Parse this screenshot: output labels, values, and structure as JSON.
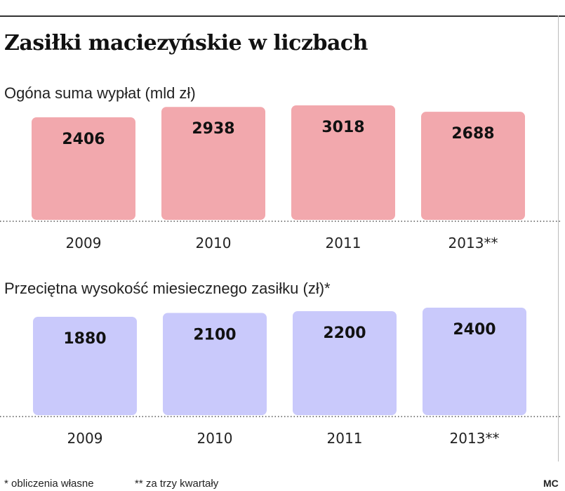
{
  "title": "Zasiłki maciezyńskie w liczbach",
  "charts": [
    {
      "subtitle": "Ogóna suma wypłat (mld zł)"
    },
    {
      "subtitle": "Przeciętna wysokość miesiecznego zasiłku (zł)*"
    }
  ],
  "chart_data": [
    {
      "type": "bar",
      "title": "Ogóna suma wypłat (mld zł)",
      "categories": [
        "2009",
        "2010",
        "2011",
        "2013**"
      ],
      "values": [
        2406,
        2938,
        3018,
        2688
      ],
      "data_labels": [
        "2406",
        "2938",
        "3018",
        "2688"
      ],
      "bar_color": "#f2a8ad",
      "grid": false,
      "legend": "none"
    },
    {
      "type": "bar",
      "title": "Przeciętna wysokość miesiecznego zasiłku (zł)*",
      "categories": [
        "2009",
        "2010",
        "2011",
        "2013**"
      ],
      "values": [
        1880,
        2100,
        2200,
        2400
      ],
      "data_labels": [
        "1880",
        "2100",
        "2200",
        "2400"
      ],
      "bar_color": "#c9c9fb",
      "grid": false,
      "legend": "none"
    }
  ],
  "footer": {
    "note_1": "* obliczenia własne",
    "note_2": "** za trzy kwartały",
    "credit": "MC"
  }
}
